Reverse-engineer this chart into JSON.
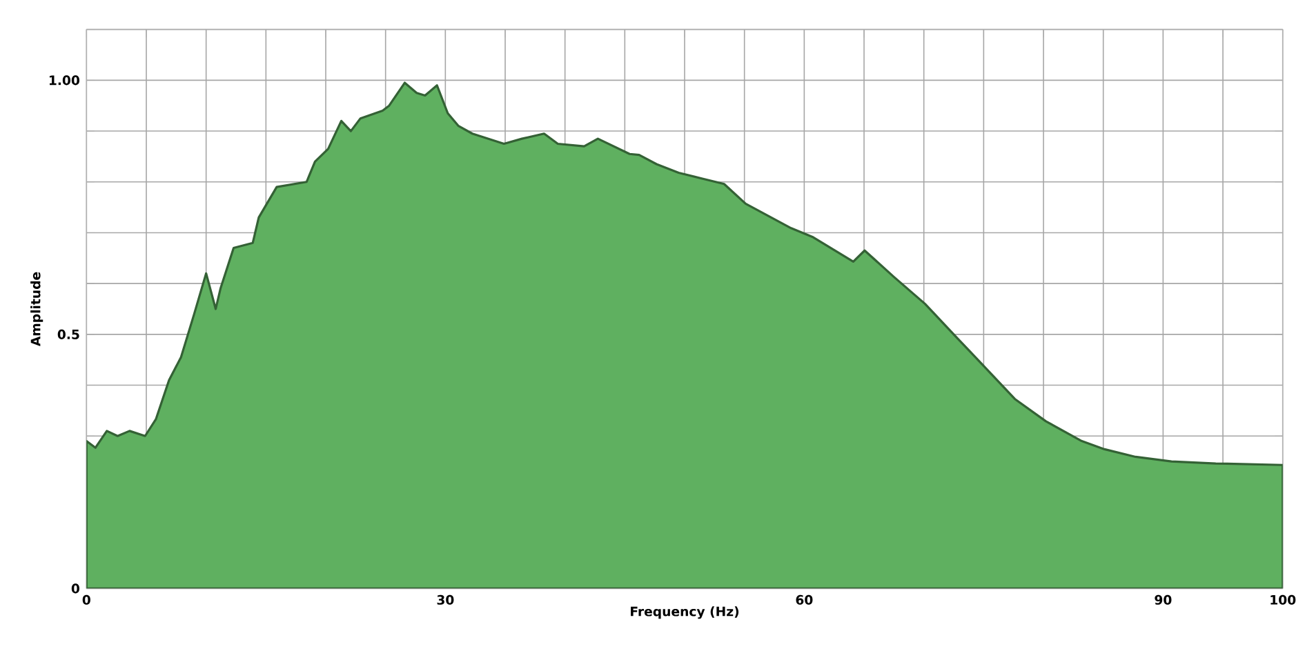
{
  "chart_data": {
    "type": "area",
    "xlabel": "Frequency (Hz)",
    "ylabel": "Amplitude",
    "color": "#5fb060",
    "grid": true,
    "xlim": [
      0,
      100
    ],
    "ylim": [
      0,
      1.1
    ],
    "xticks": [
      0,
      {
        "value": 5,
        "label": null
      },
      {
        "value": 10,
        "label": null
      },
      {
        "value": 15,
        "label": null
      },
      {
        "value": 20,
        "label": null
      },
      {
        "value": 25,
        "label": null
      },
      30,
      {
        "value": 35,
        "label": null
      },
      {
        "value": 40,
        "label": null
      },
      {
        "value": 45,
        "label": null
      },
      {
        "value": 50,
        "label": null
      },
      {
        "value": 55,
        "label": null
      },
      60,
      {
        "value": 65,
        "label": null
      },
      {
        "value": 70,
        "label": null
      },
      {
        "value": 75,
        "label": null
      },
      {
        "value": 80,
        "label": null
      },
      {
        "value": 85,
        "label": null
      },
      90,
      {
        "value": 95,
        "label": null
      },
      100
    ],
    "yticks": [
      0,
      {
        "value": 0.1,
        "label": null
      },
      {
        "value": 0.2,
        "label": null
      },
      {
        "value": 0.3,
        "label": null
      },
      {
        "value": 0.4,
        "label": null
      },
      0.5,
      {
        "value": 0.6,
        "label": null
      },
      {
        "value": 0.7,
        "label": null
      },
      {
        "value": 0.8,
        "label": null
      },
      {
        "value": 0.9,
        "label": null
      },
      {
        "value": 1,
        "label": "1.00"
      },
      {
        "value": 1.1,
        "label": null
      }
    ],
    "x": [
      0,
      0.75,
      1.7,
      2.6,
      3.6,
      4.9,
      5.8,
      6.9,
      7.9,
      9.0,
      10.0,
      10.8,
      11.2,
      12.3,
      13.9,
      14.4,
      15.9,
      18.4,
      19.1,
      20.2,
      21.3,
      22.1,
      22.9,
      24.75,
      25.3,
      26.6,
      27.6,
      28.3,
      29.3,
      30.2,
      31.1,
      32.25,
      34.9,
      36.4,
      38.25,
      39.4,
      41.6,
      42.75,
      45.4,
      46.2,
      47.65,
      49.5,
      53.3,
      55.1,
      58.9,
      60.75,
      64.1,
      65.05,
      67.5,
      70.1,
      72.7,
      75.0,
      77.6,
      80.2,
      83.2,
      85.1,
      87.7,
      90.7,
      94.4,
      100
    ],
    "values": [
      0.29,
      0.277,
      0.31,
      0.3,
      0.31,
      0.3,
      0.333,
      0.41,
      0.455,
      0.54,
      0.62,
      0.55,
      0.59,
      0.67,
      0.68,
      0.73,
      0.79,
      0.8,
      0.84,
      0.865,
      0.92,
      0.9,
      0.925,
      0.94,
      0.95,
      0.995,
      0.975,
      0.97,
      0.99,
      0.935,
      0.91,
      0.895,
      0.875,
      0.885,
      0.895,
      0.875,
      0.87,
      0.885,
      0.855,
      0.853,
      0.835,
      0.818,
      0.796,
      0.757,
      0.709,
      0.691,
      0.643,
      0.665,
      0.613,
      0.56,
      0.495,
      0.438,
      0.373,
      0.329,
      0.29,
      0.274,
      0.259,
      0.25,
      0.246,
      0.243
    ]
  }
}
